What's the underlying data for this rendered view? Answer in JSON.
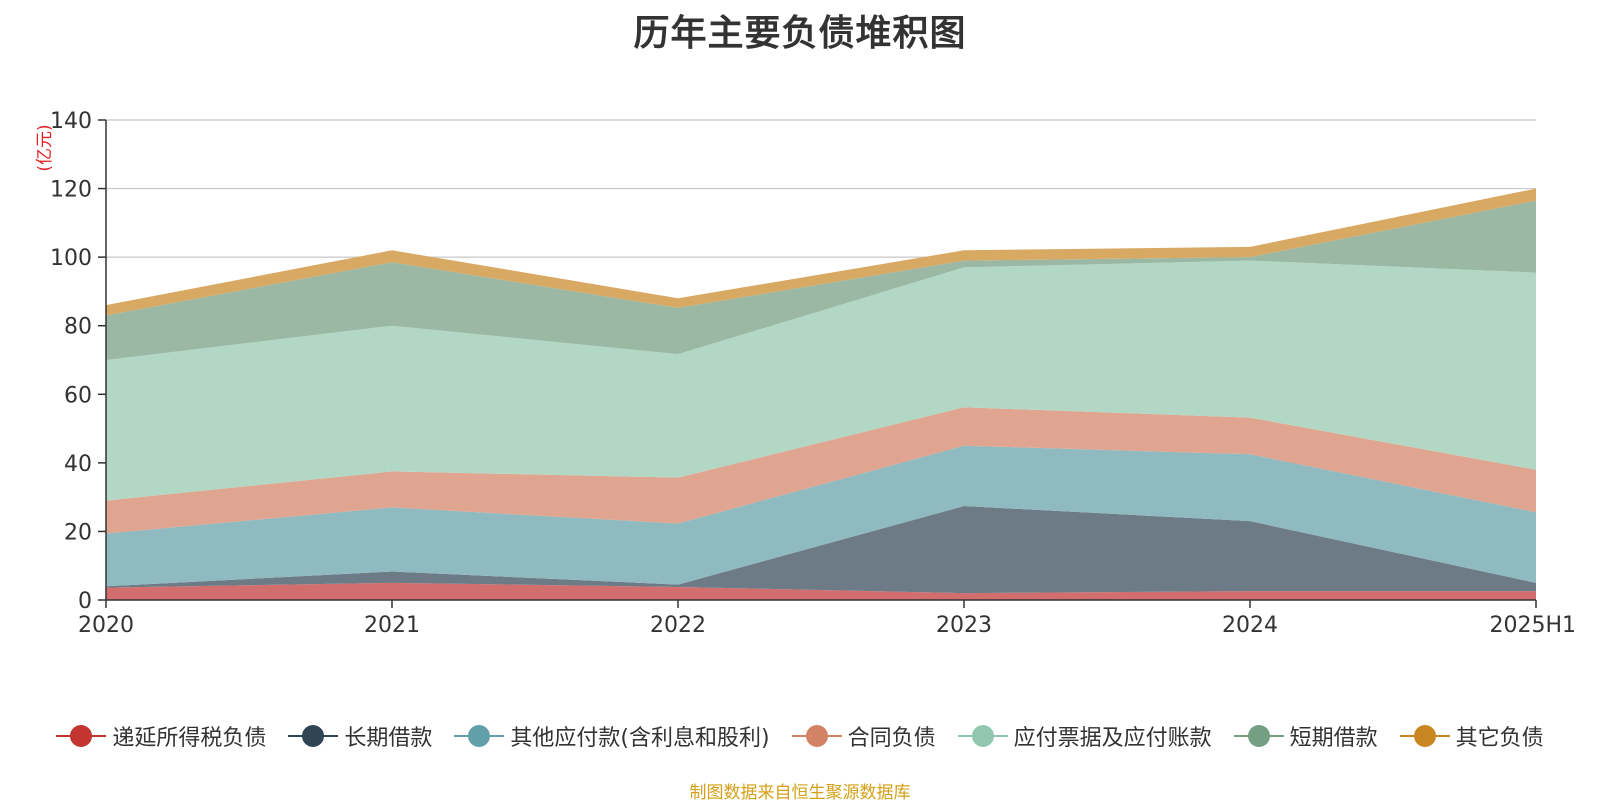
{
  "title": "历年主要负债堆积图",
  "source": "制图数据来自恒生聚源数据库",
  "chart_data": {
    "type": "area",
    "stacked": true,
    "title": "历年主要负债堆积图",
    "unit_label": "(亿元)",
    "categories": [
      "2020",
      "2021",
      "2022",
      "2023",
      "2024",
      "2025H1"
    ],
    "ylim": [
      0,
      140
    ],
    "yticks": [
      0,
      20,
      40,
      60,
      80,
      100,
      120,
      140
    ],
    "grid": true,
    "legend_position": "bottom",
    "series": [
      {
        "name": "递延所得税负债",
        "color": "#d36e6e",
        "legend_color": "#c23531",
        "values": [
          3.6,
          5.0,
          3.8,
          2.0,
          2.6,
          2.6
        ]
      },
      {
        "name": "长期借款",
        "color": "#6d7b87",
        "legend_color": "#2f4554",
        "values": [
          0.4,
          3.3,
          0.7,
          25.4,
          20.4,
          2.4
        ]
      },
      {
        "name": "其他应付款(含利息和股利)",
        "color": "#8fbac0",
        "legend_color": "#61a0a8",
        "values": [
          15.4,
          18.7,
          17.8,
          17.6,
          19.5,
          20.6
        ]
      },
      {
        "name": "合同负债",
        "color": "#e0a591",
        "legend_color": "#d48265",
        "values": [
          9.6,
          10.5,
          13.4,
          11.2,
          10.7,
          12.4
        ]
      },
      {
        "name": "应付票据及应付账款",
        "color": "#b2d8c5",
        "legend_color": "#91c7ae",
        "values": [
          41.0,
          42.5,
          36.0,
          40.8,
          45.8,
          57.5
        ]
      },
      {
        "name": "短期借款",
        "color": "#9bb8a5",
        "legend_color": "#749f83",
        "values": [
          13.0,
          18.5,
          13.5,
          2.0,
          1.0,
          21.0
        ]
      },
      {
        "name": "其它负债",
        "color": "#d8a963",
        "legend_color": "#ca8622",
        "values": [
          3.0,
          3.5,
          2.8,
          3.0,
          3.0,
          3.5
        ]
      }
    ]
  }
}
